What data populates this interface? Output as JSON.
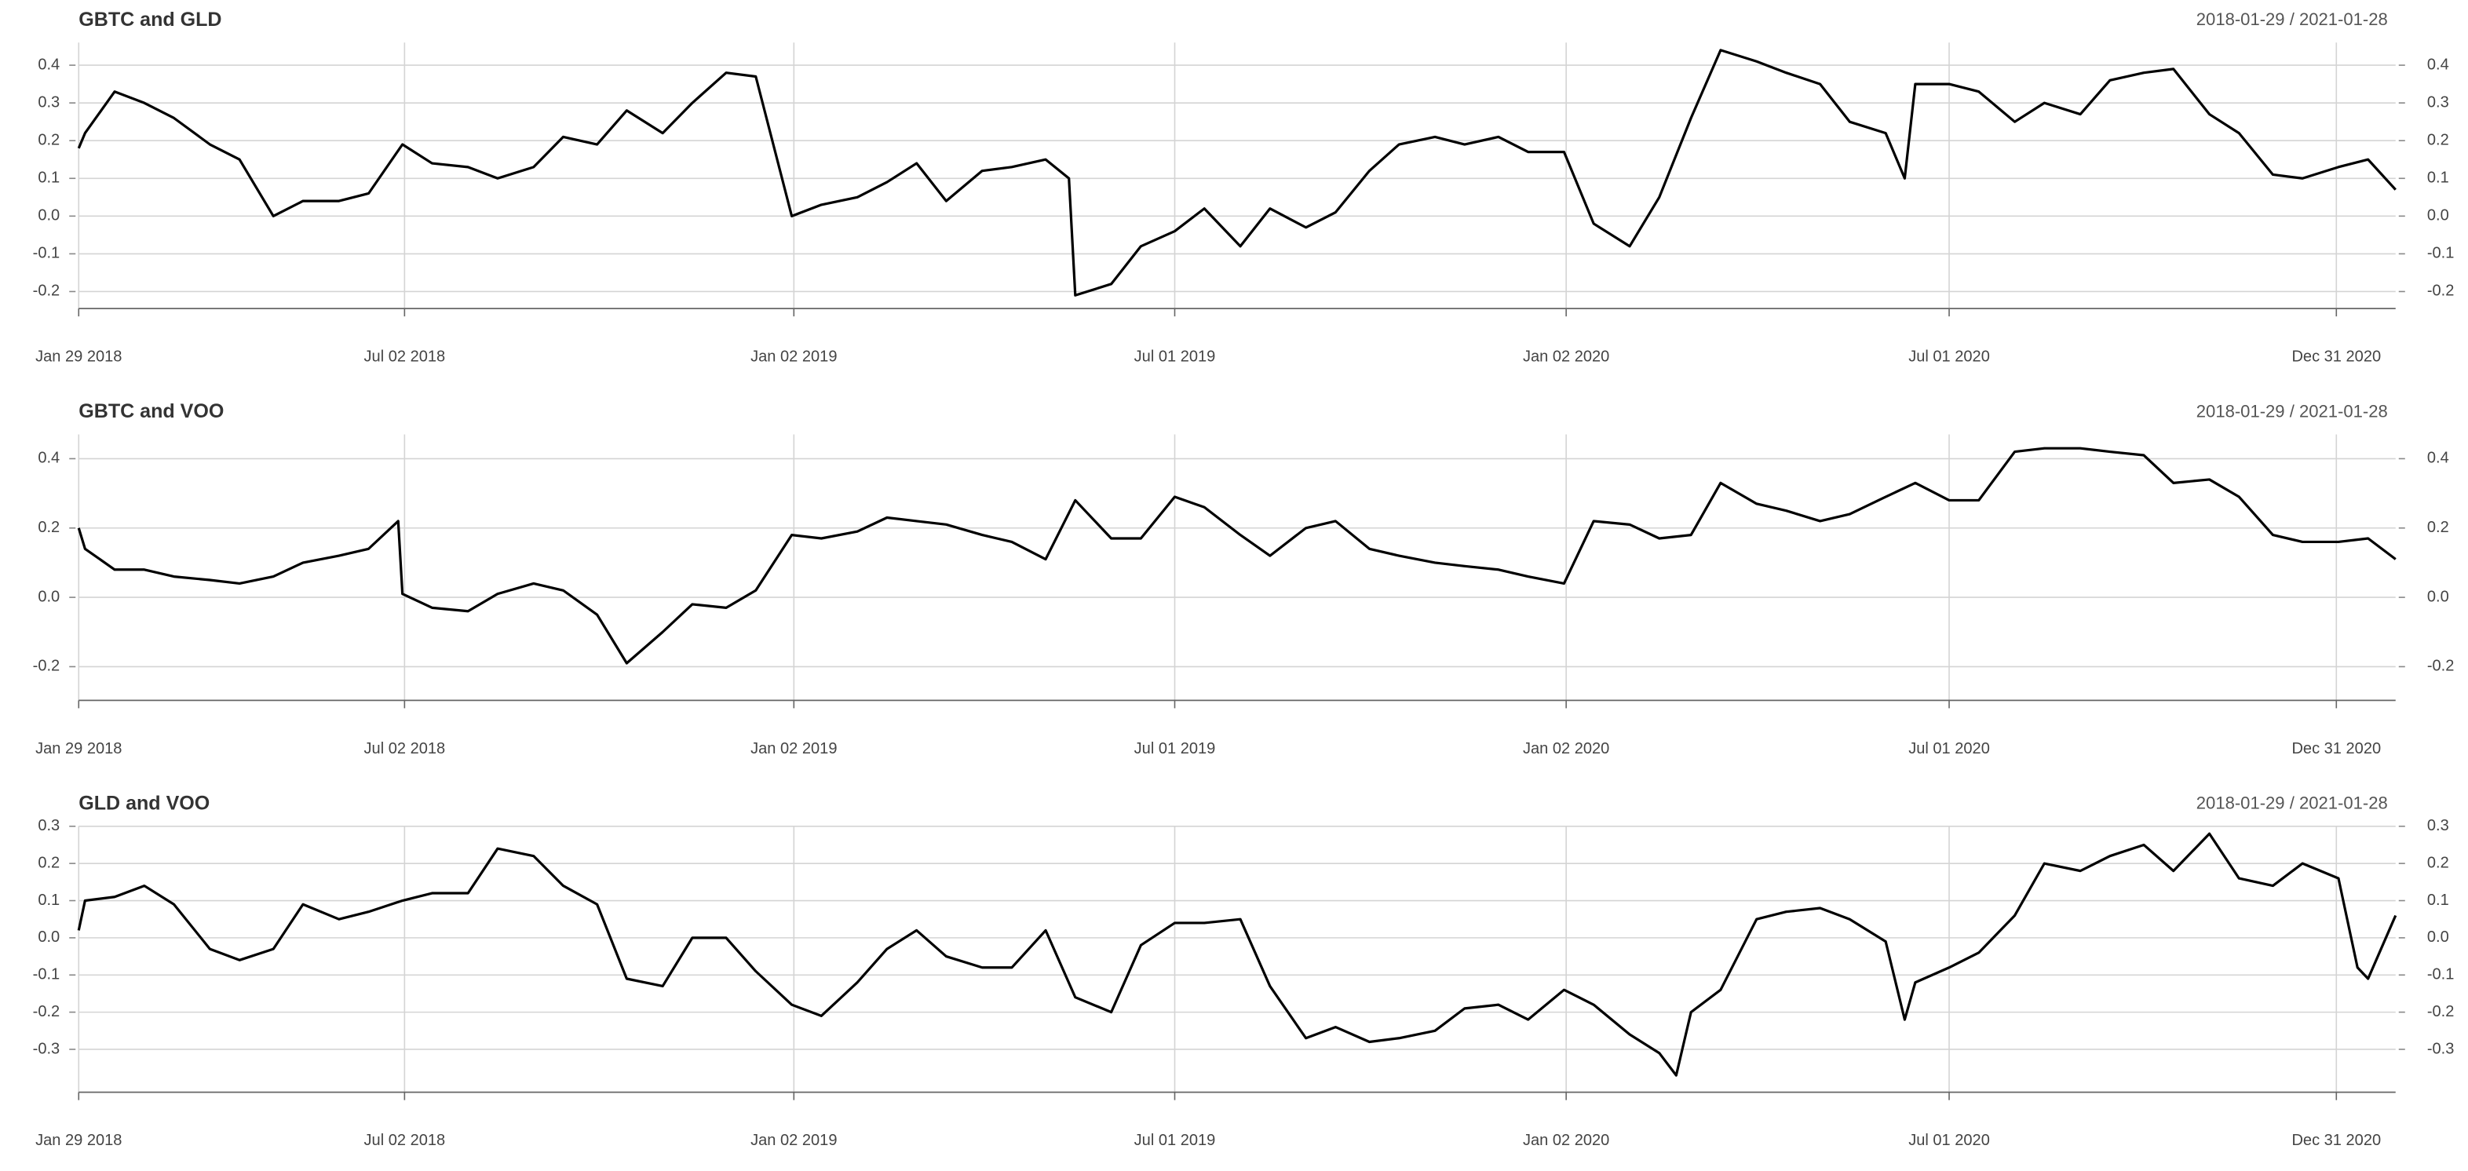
{
  "chart_data": [
    {
      "type": "line",
      "title": "GBTC and GLD",
      "subtitle": "2018-01-29 / 2021-01-28",
      "color": "#000000",
      "grid": true,
      "x": [
        "2018-01-29",
        "2018-02-01",
        "2018-02-15",
        "2018-03-01",
        "2018-03-15",
        "2018-04-01",
        "2018-04-15",
        "2018-05-01",
        "2018-05-15",
        "2018-06-01",
        "2018-06-15",
        "2018-07-01",
        "2018-07-15",
        "2018-08-01",
        "2018-08-15",
        "2018-09-01",
        "2018-09-15",
        "2018-10-01",
        "2018-10-15",
        "2018-11-01",
        "2018-11-15",
        "2018-12-01",
        "2018-12-15",
        "2019-01-01",
        "2019-01-15",
        "2019-02-01",
        "2019-02-15",
        "2019-03-01",
        "2019-03-15",
        "2019-04-01",
        "2019-04-15",
        "2019-05-01",
        "2019-05-12",
        "2019-05-15",
        "2019-06-01",
        "2019-06-15",
        "2019-07-01",
        "2019-07-15",
        "2019-08-01",
        "2019-08-15",
        "2019-09-01",
        "2019-09-15",
        "2019-10-01",
        "2019-10-15",
        "2019-11-01",
        "2019-11-15",
        "2019-12-01",
        "2019-12-15",
        "2020-01-01",
        "2020-01-15",
        "2020-02-01",
        "2020-02-15",
        "2020-03-01",
        "2020-03-15",
        "2020-04-01",
        "2020-04-15",
        "2020-05-01",
        "2020-05-15",
        "2020-06-01",
        "2020-06-10",
        "2020-06-15",
        "2020-07-01",
        "2020-07-15",
        "2020-08-01",
        "2020-08-15",
        "2020-09-01",
        "2020-09-15",
        "2020-10-01",
        "2020-10-15",
        "2020-11-01",
        "2020-11-15",
        "2020-12-01",
        "2020-12-15",
        "2021-01-01",
        "2021-01-15",
        "2021-01-28"
      ],
      "values": [
        0.18,
        0.22,
        0.33,
        0.3,
        0.26,
        0.19,
        0.15,
        0.0,
        0.04,
        0.04,
        0.06,
        0.19,
        0.14,
        0.13,
        0.1,
        0.13,
        0.21,
        0.19,
        0.28,
        0.22,
        0.3,
        0.38,
        0.37,
        0.0,
        0.03,
        0.05,
        0.09,
        0.14,
        0.04,
        0.12,
        0.13,
        0.15,
        0.1,
        -0.21,
        -0.18,
        -0.08,
        -0.04,
        0.02,
        -0.08,
        0.02,
        -0.03,
        0.01,
        0.12,
        0.19,
        0.21,
        0.19,
        0.21,
        0.17,
        0.17,
        -0.02,
        -0.08,
        0.05,
        0.26,
        0.44,
        0.41,
        0.38,
        0.35,
        0.25,
        0.22,
        0.1,
        0.35,
        0.35,
        0.33,
        0.25,
        0.3,
        0.27,
        0.36,
        0.38,
        0.39,
        0.27,
        0.22,
        0.11,
        0.1,
        0.13,
        0.15,
        0.07
      ],
      "xlim": [
        "2018-01-29",
        "2021-01-28"
      ],
      "xticks": [
        {
          "value": "2018-01-29",
          "label": "Jan 29 2018"
        },
        {
          "value": "2018-07-02",
          "label": "Jul 02 2018"
        },
        {
          "value": "2019-01-02",
          "label": "Jan 02 2019"
        },
        {
          "value": "2019-07-01",
          "label": "Jul 01 2019"
        },
        {
          "value": "2020-01-02",
          "label": "Jan 02 2020"
        },
        {
          "value": "2020-07-01",
          "label": "Jul 01 2020"
        },
        {
          "value": "2020-12-31",
          "label": "Dec 31 2020"
        }
      ],
      "ylim": [
        -0.22,
        0.46
      ],
      "yticks": [
        0.4,
        0.3,
        0.2,
        0.1,
        {
          "value": 0,
          "label": "0.0"
        },
        -0.1,
        -0.2
      ]
    },
    {
      "type": "line",
      "title": "GBTC and VOO",
      "subtitle": "2018-01-29 / 2021-01-28",
      "color": "#000000",
      "grid": true,
      "x": [
        "2018-01-29",
        "2018-02-01",
        "2018-02-15",
        "2018-03-01",
        "2018-03-15",
        "2018-04-01",
        "2018-04-15",
        "2018-05-01",
        "2018-05-15",
        "2018-06-01",
        "2018-06-15",
        "2018-06-29",
        "2018-07-01",
        "2018-07-15",
        "2018-08-01",
        "2018-08-15",
        "2018-09-01",
        "2018-09-15",
        "2018-10-01",
        "2018-10-15",
        "2018-11-01",
        "2018-11-15",
        "2018-12-01",
        "2018-12-15",
        "2019-01-01",
        "2019-01-15",
        "2019-02-01",
        "2019-02-15",
        "2019-03-01",
        "2019-03-15",
        "2019-04-01",
        "2019-04-15",
        "2019-05-01",
        "2019-05-15",
        "2019-06-01",
        "2019-06-15",
        "2019-07-01",
        "2019-07-15",
        "2019-08-01",
        "2019-08-15",
        "2019-09-01",
        "2019-09-15",
        "2019-10-01",
        "2019-10-15",
        "2019-11-01",
        "2019-11-15",
        "2019-12-01",
        "2019-12-15",
        "2020-01-01",
        "2020-01-15",
        "2020-02-01",
        "2020-02-15",
        "2020-03-01",
        "2020-03-15",
        "2020-04-01",
        "2020-04-15",
        "2020-05-01",
        "2020-05-15",
        "2020-06-01",
        "2020-06-15",
        "2020-07-01",
        "2020-07-15",
        "2020-08-01",
        "2020-08-15",
        "2020-09-01",
        "2020-09-15",
        "2020-10-01",
        "2020-10-15",
        "2020-11-01",
        "2020-11-15",
        "2020-12-01",
        "2020-12-15",
        "2021-01-01",
        "2021-01-15",
        "2021-01-28"
      ],
      "values": [
        0.2,
        0.14,
        0.08,
        0.08,
        0.06,
        0.05,
        0.04,
        0.06,
        0.1,
        0.12,
        0.14,
        0.22,
        0.01,
        -0.03,
        -0.04,
        0.01,
        0.04,
        0.02,
        -0.05,
        -0.19,
        -0.1,
        -0.02,
        -0.03,
        0.02,
        0.18,
        0.17,
        0.19,
        0.23,
        0.22,
        0.21,
        0.18,
        0.16,
        0.11,
        0.28,
        0.17,
        0.17,
        0.29,
        0.26,
        0.18,
        0.12,
        0.2,
        0.22,
        0.14,
        0.12,
        0.1,
        0.09,
        0.08,
        0.06,
        0.04,
        0.22,
        0.21,
        0.17,
        0.18,
        0.33,
        0.27,
        0.25,
        0.22,
        0.24,
        0.29,
        0.33,
        0.28,
        0.28,
        0.42,
        0.43,
        0.43,
        0.42,
        0.41,
        0.33,
        0.34,
        0.29,
        0.18,
        0.16,
        0.16,
        0.17,
        0.11
      ],
      "xlim": [
        "2018-01-29",
        "2021-01-28"
      ],
      "xticks": [
        {
          "value": "2018-01-29",
          "label": "Jan 29 2018"
        },
        {
          "value": "2018-07-02",
          "label": "Jul 02 2018"
        },
        {
          "value": "2019-01-02",
          "label": "Jan 02 2019"
        },
        {
          "value": "2019-07-01",
          "label": "Jul 01 2019"
        },
        {
          "value": "2020-01-02",
          "label": "Jan 02 2020"
        },
        {
          "value": "2020-07-01",
          "label": "Jul 01 2020"
        },
        {
          "value": "2020-12-31",
          "label": "Dec 31 2020"
        }
      ],
      "ylim": [
        -0.27,
        0.47
      ],
      "yticks": [
        0.4,
        0.2,
        {
          "value": 0,
          "label": "0.0"
        },
        -0.2
      ]
    },
    {
      "type": "line",
      "title": "GLD and VOO",
      "subtitle": "2018-01-29 / 2021-01-28",
      "color": "#000000",
      "grid": true,
      "x": [
        "2018-01-29",
        "2018-02-01",
        "2018-02-15",
        "2018-03-01",
        "2018-03-15",
        "2018-04-01",
        "2018-04-15",
        "2018-05-01",
        "2018-05-15",
        "2018-06-01",
        "2018-06-15",
        "2018-07-01",
        "2018-07-15",
        "2018-08-01",
        "2018-08-15",
        "2018-09-01",
        "2018-09-15",
        "2018-10-01",
        "2018-10-15",
        "2018-11-01",
        "2018-11-15",
        "2018-12-01",
        "2018-12-15",
        "2019-01-01",
        "2019-01-15",
        "2019-02-01",
        "2019-02-15",
        "2019-03-01",
        "2019-03-15",
        "2019-04-01",
        "2019-04-15",
        "2019-05-01",
        "2019-05-15",
        "2019-06-01",
        "2019-06-15",
        "2019-07-01",
        "2019-07-15",
        "2019-08-01",
        "2019-08-15",
        "2019-09-01",
        "2019-09-15",
        "2019-10-01",
        "2019-10-15",
        "2019-11-01",
        "2019-11-15",
        "2019-12-01",
        "2019-12-15",
        "2020-01-01",
        "2020-01-15",
        "2020-02-01",
        "2020-02-15",
        "2020-02-23",
        "2020-03-01",
        "2020-03-15",
        "2020-04-01",
        "2020-04-15",
        "2020-05-01",
        "2020-05-15",
        "2020-06-01",
        "2020-06-10",
        "2020-06-15",
        "2020-07-01",
        "2020-07-15",
        "2020-08-01",
        "2020-08-15",
        "2020-09-01",
        "2020-09-15",
        "2020-10-01",
        "2020-10-15",
        "2020-11-01",
        "2020-11-15",
        "2020-12-01",
        "2020-12-15",
        "2021-01-01",
        "2021-01-10",
        "2021-01-15",
        "2021-01-28"
      ],
      "values": [
        0.02,
        0.1,
        0.11,
        0.14,
        0.09,
        -0.03,
        -0.06,
        -0.03,
        0.09,
        0.05,
        0.07,
        0.1,
        0.12,
        0.12,
        0.24,
        0.22,
        0.14,
        0.09,
        -0.11,
        -0.13,
        0.0,
        0.0,
        -0.09,
        -0.18,
        -0.21,
        -0.12,
        -0.03,
        0.02,
        -0.05,
        -0.08,
        -0.08,
        0.02,
        -0.16,
        -0.2,
        -0.02,
        0.04,
        0.04,
        0.05,
        -0.13,
        -0.27,
        -0.24,
        -0.28,
        -0.27,
        -0.25,
        -0.19,
        -0.18,
        -0.22,
        -0.14,
        -0.18,
        -0.26,
        -0.31,
        -0.37,
        -0.2,
        -0.14,
        0.05,
        0.07,
        0.08,
        0.05,
        -0.01,
        -0.22,
        -0.12,
        -0.08,
        -0.04,
        0.06,
        0.2,
        0.18,
        0.22,
        0.25,
        0.18,
        0.28,
        0.16,
        0.14,
        0.2,
        0.16,
        -0.08,
        -0.11,
        0.06
      ],
      "xlim": [
        "2018-01-29",
        "2021-01-28"
      ],
      "xticks": [
        {
          "value": "2018-01-29",
          "label": "Jan 29 2018"
        },
        {
          "value": "2018-07-02",
          "label": "Jul 02 2018"
        },
        {
          "value": "2019-01-02",
          "label": "Jan 02 2019"
        },
        {
          "value": "2019-07-01",
          "label": "Jul 01 2019"
        },
        {
          "value": "2020-01-02",
          "label": "Jan 02 2020"
        },
        {
          "value": "2020-07-01",
          "label": "Jul 01 2020"
        },
        {
          "value": "2020-12-31",
          "label": "Dec 31 2020"
        }
      ],
      "ylim": [
        -0.39,
        0.3
      ],
      "yticks": [
        0.3,
        0.2,
        0.1,
        {
          "value": 0,
          "label": "0.0"
        },
        -0.1,
        -0.2,
        -0.3
      ]
    }
  ]
}
